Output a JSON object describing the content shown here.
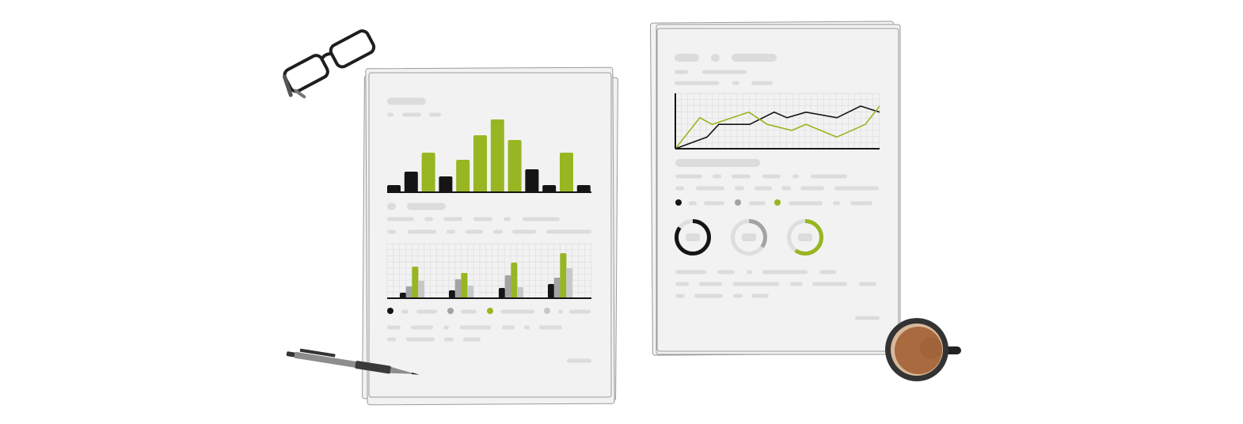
{
  "colors": {
    "green": "#97b622",
    "black": "#151515",
    "gray": "#a3a3a3",
    "light_gray": "#c8c8c8",
    "paper": "#f2f2f2",
    "placeholder": "#dcdcdc",
    "coffee": "#a86a3e"
  },
  "icons": [
    "eyeglasses-icon",
    "pen-icon",
    "coffee-cup-icon"
  ],
  "chart_data": [
    {
      "type": "bar",
      "document": "left",
      "values": [
        0.8,
        2.5,
        4.9,
        1.9,
        4.0,
        7.1,
        9.1,
        6.5,
        2.8,
        0.8,
        4.9,
        0.8
      ],
      "bar_colors": [
        "black",
        "black",
        "green",
        "black",
        "green",
        "green",
        "green",
        "green",
        "black",
        "black",
        "green",
        "black"
      ],
      "ylim": [
        0,
        10
      ],
      "grid": false
    },
    {
      "type": "bar",
      "document": "left",
      "grouped": true,
      "series": [
        {
          "color": "black",
          "values": [
            0.7,
            1.0,
            1.3,
            1.8
          ]
        },
        {
          "color": "gray",
          "values": [
            1.5,
            2.4,
            2.9,
            2.6
          ]
        },
        {
          "color": "green",
          "values": [
            4.0,
            3.2,
            4.5,
            5.7
          ]
        },
        {
          "color": "light_gray",
          "values": [
            2.2,
            1.6,
            1.4,
            3.8
          ]
        }
      ],
      "ylim": [
        0,
        7
      ],
      "grid": true
    },
    {
      "type": "line",
      "document": "right",
      "series": [
        {
          "color": "black",
          "x": [
            0,
            1.55,
            2.13,
            3.64,
            4.84,
            5.47,
            6.4,
            7.91,
            9.07,
            10
          ],
          "y": [
            0,
            2.1,
            4.4,
            4.4,
            6.6,
            5.6,
            6.6,
            5.6,
            7.7,
            6.6
          ]
        },
        {
          "color": "green",
          "x": [
            0,
            1.2,
            1.8,
            3.6,
            4.5,
            5.7,
            6.4,
            7.9,
            9.3,
            10
          ],
          "y": [
            0,
            5.6,
            4.4,
            6.6,
            4.4,
            3.3,
            4.4,
            2.1,
            4.4,
            7.7
          ]
        }
      ],
      "xlim": [
        0,
        10
      ],
      "ylim": [
        0,
        10
      ],
      "grid": true
    },
    {
      "type": "pie",
      "document": "right",
      "donut": true,
      "values": [
        0.85,
        0.35,
        0.6
      ],
      "slice_colors": [
        "black",
        "gray",
        "green"
      ]
    }
  ]
}
